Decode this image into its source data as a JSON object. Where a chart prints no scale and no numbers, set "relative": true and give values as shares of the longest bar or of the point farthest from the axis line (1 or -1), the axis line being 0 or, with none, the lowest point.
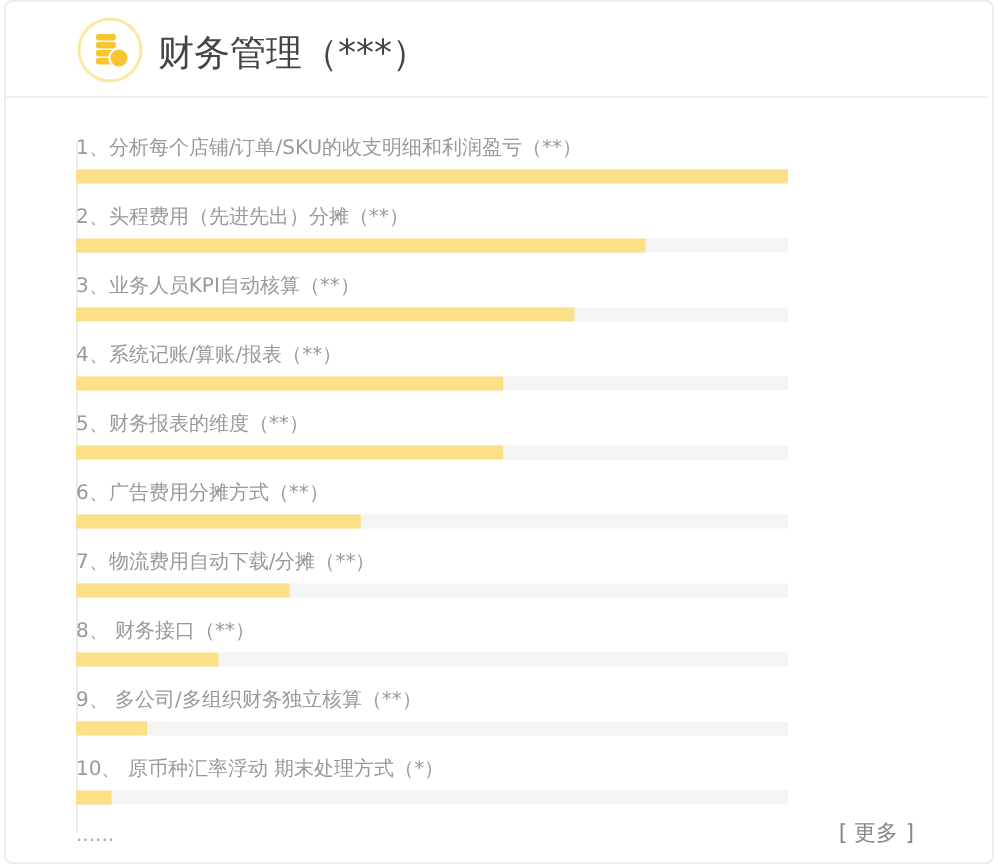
{
  "chart_data": {
    "type": "bar",
    "orientation": "horizontal",
    "relative": true,
    "title": "财务管理（***）",
    "categories": [
      "1、分析每个店铺/订单/SKU的收支明细和利润盈亏（**）",
      "2、头程费用（先进先出）分摊（**）",
      "3、业务人员KPI自动核算（**）",
      "4、系统记账/算账/报表（**）",
      "5、财务报表的维度（**）",
      "6、广告费用分摊方式（**）",
      "7、物流费用自动下载/分摊（**）",
      "8、 财务接口（**）",
      "9、 多公司/多组织财务独立核算（**）",
      "10、 原币种汇率浮动 期末处理方式（*）"
    ],
    "values": [
      1,
      0.8,
      0.7,
      0.6,
      0.6,
      0.4,
      0.3,
      0.2,
      0.1,
      0.05
    ],
    "color": "#fbe088",
    "annotations": [
      "......",
      "[ 更多 ]"
    ]
  }
}
